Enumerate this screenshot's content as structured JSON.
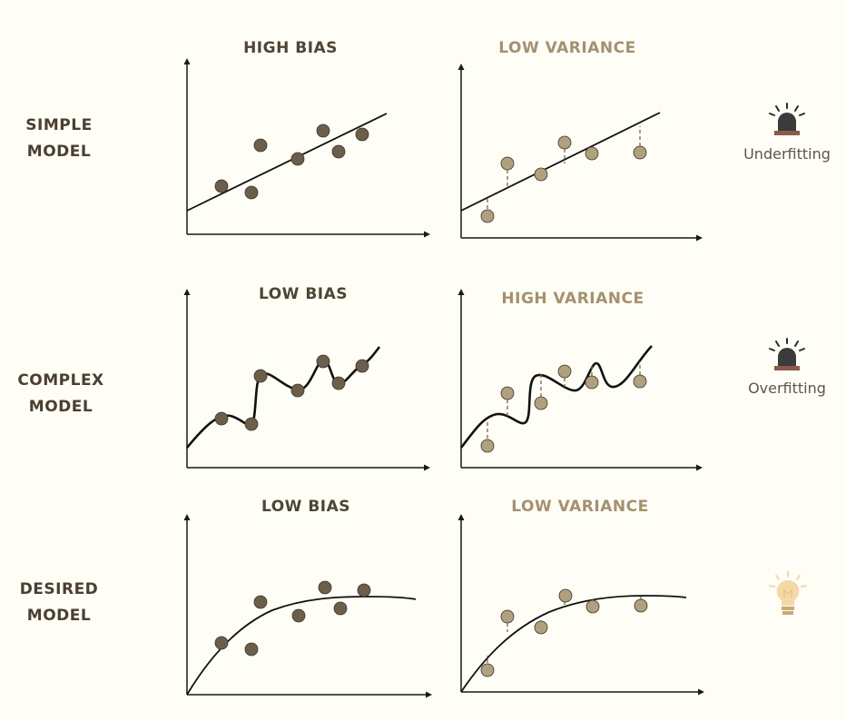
{
  "rows": [
    {
      "label_line1": "SIMPLE",
      "label_line2": "MODEL",
      "left_title": "HIGH BIAS",
      "right_title": "LOW VARIANCE",
      "status": "Underfitting",
      "icon": "alarm-light-icon"
    },
    {
      "label_line1": "COMPLEX",
      "label_line2": "MODEL",
      "left_title": "LOW BIAS",
      "right_title": "HIGH VARIANCE",
      "status": "Overfitting",
      "icon": "alarm-light-icon"
    },
    {
      "label_line1": "DESIRED",
      "label_line2": "MODEL",
      "left_title": "LOW BIAS",
      "right_title": "LOW VARIANCE",
      "status": "",
      "icon": "lightbulb-icon"
    }
  ],
  "colors": {
    "dark_point": "#6b5f4c",
    "tan_point": "#b0a07f",
    "curve": "#111111",
    "axis": "#1a1a1a",
    "residual": "#7a6a50",
    "bulb": "#f2d6a0"
  }
}
